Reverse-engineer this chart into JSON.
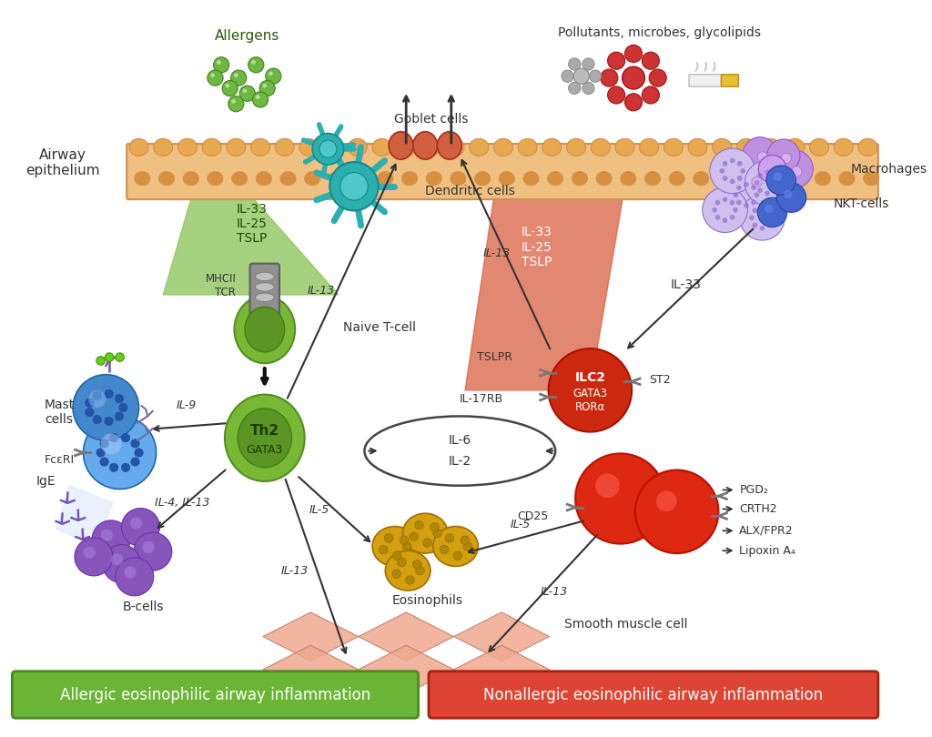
{
  "bg_color": "#ffffff",
  "label_allergens": "Allergens",
  "label_pollutants": "Pollutants, microbes, glycolipids",
  "label_goblet": "Goblet cells",
  "label_airway": "Airway\nepithelium",
  "label_macrohages": "Macrohages",
  "label_dendritic": "Dendritic cells",
  "label_mhc": "MHCII\nTCR",
  "label_naive": "Naive T-cell",
  "label_il33_left": "IL-33\nIL-25\nTSLP",
  "label_il33_right": "IL-33\nIL-25\nTSLP",
  "label_ilc2_line1": "ILC2",
  "label_ilc2_line2": "GATA3",
  "label_ilc2_line3": "RORα",
  "label_tslpr": "TSLPR",
  "label_il17rb": "IL-17RB",
  "label_st2": "ST2",
  "label_il33_arrow": "IL-33",
  "label_nkt": "NKT-cells",
  "label_mast": "Mast\ncells",
  "label_fceri": "FcεRI",
  "label_ige": "IgE",
  "label_bcells": "B-cells",
  "label_eosinophils": "Eosinophils",
  "label_smooth": "Smooth muscle cell",
  "label_il9": "IL-9",
  "label_il13_left": "IL-13",
  "label_il13_right": "IL-13",
  "label_il5_left": "IL-5",
  "label_il5_right": "IL-5",
  "label_il13_bot_left": "IL-13",
  "label_il13_bot_right": "IL-13",
  "label_il6": "IL-6",
  "label_il2": "IL-2",
  "label_cd25": "CD25",
  "label_il4_il13": "IL-4, IL-13",
  "label_pgd2": "PGD₂",
  "label_crth2": "CRTH2",
  "label_alx": "ALX/FPR2",
  "label_lipoxin": "Lipoxin A₄",
  "label_box_left": "Allergic eosinophilic airway inflammation",
  "label_box_right": "Nonallergic eosinophilic airway inflammation",
  "epi_color": "#f0c080",
  "epi_edge": "#d09050",
  "epi_bump_color": "#e8a850",
  "epi_nuc_color": "#d89040",
  "green_tri_color": "#88c455",
  "orange_tri_color": "#d96040",
  "allergen_fill": "#6db840",
  "allergen_edge": "#4a8020",
  "gray_particle": "#aaaaaa",
  "red_virus": "#cc3333",
  "dendritic_color": "#2ab0b0",
  "dendritic_edge": "#1a8888",
  "th2_outer": "#78b835",
  "th2_inner": "#5a9525",
  "naive_outer": "#78b835",
  "naive_inner": "#5a9525",
  "ilc2_color": "#cc2810",
  "ilc2_edge": "#aa1000",
  "red_cell_color": "#dd2812",
  "red_cell_edge": "#bb1000",
  "eos_color": "#d4a010",
  "eos_edge": "#a07000",
  "bcell_color": "#8855bb",
  "bcell_edge": "#6633aa",
  "mast_color1": "#4488cc",
  "mast_color2": "#66aaee",
  "mast_edge": "#2266aa",
  "nkt_purple": "#aa77dd",
  "nkt_blue": "#3355bb",
  "smooth_color": "#f0a890",
  "smooth_edge": "#c07860",
  "box_green": "#6ab535",
  "box_red": "#dd4433",
  "arrow_color": "#333333",
  "receptor_color": "#777777"
}
